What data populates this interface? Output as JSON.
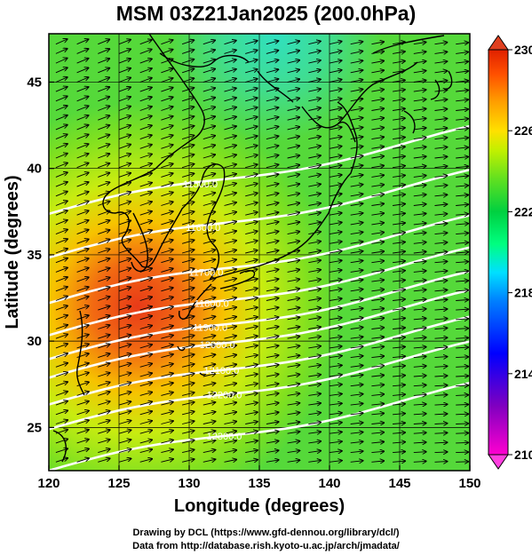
{
  "title": "MSM 03Z21Jan2025 (200.0hPa)",
  "axes": {
    "xlabel": "Longitude (degrees)",
    "ylabel": "Latitude  (degrees)",
    "xticks": [
      "120",
      "125",
      "130",
      "135",
      "140",
      "145",
      "150"
    ],
    "yticks": [
      "25",
      "30",
      "35",
      "40",
      "45"
    ]
  },
  "colorbar": {
    "ticks": [
      "230",
      "226",
      "222",
      "218",
      "214",
      "210"
    ],
    "range": [
      210,
      230
    ],
    "colors": [
      "#ff00d0",
      "#8000c0",
      "#0000ff",
      "#0080ff",
      "#00e0ff",
      "#00ff80",
      "#00d040",
      "#60e020",
      "#c0f000",
      "#ffe000",
      "#ffa000",
      "#ff5000",
      "#e02000"
    ]
  },
  "contours": [
    {
      "label": "11500.0",
      "lon": 130.8,
      "lat": 39.1
    },
    {
      "label": "11600.0",
      "lon": 131.0,
      "lat": 36.6
    },
    {
      "label": "11700.0",
      "lon": 131.2,
      "lat": 34.0
    },
    {
      "label": "11800.0",
      "lon": 131.6,
      "lat": 32.2
    },
    {
      "label": "11900.0",
      "lon": 131.5,
      "lat": 30.8
    },
    {
      "label": "12000.0",
      "lon": 132.0,
      "lat": 29.8
    },
    {
      "label": "12100.0",
      "lon": 132.3,
      "lat": 28.3
    },
    {
      "label": "12200.0",
      "lon": 132.5,
      "lat": 26.9
    },
    {
      "label": "12300.0",
      "lon": 132.5,
      "lat": 24.5
    }
  ],
  "credits": {
    "line1": "Drawing by DCL (https://www.gfd-dennou.org/library/dcl/)",
    "line2": "Data from http://database.rish.kyoto-u.ac.jp/arch/jmadata/"
  }
}
